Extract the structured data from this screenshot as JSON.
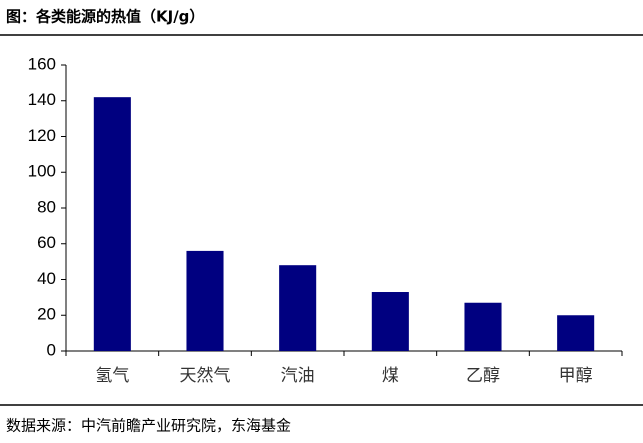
{
  "chart_data": {
    "type": "bar",
    "title": "图：各类能源的热值（KJ/g）",
    "source": "数据来源：中汽前瞻产业研究院，东海基金",
    "categories": [
      "氢气",
      "天然气",
      "汽油",
      "煤",
      "乙醇",
      "甲醇"
    ],
    "values": [
      142,
      56,
      48,
      33,
      27,
      20
    ],
    "color": "#000080",
    "ylim": [
      0,
      160
    ],
    "yticks": [
      0,
      20,
      40,
      60,
      80,
      100,
      120,
      140,
      160
    ],
    "grid": false
  }
}
